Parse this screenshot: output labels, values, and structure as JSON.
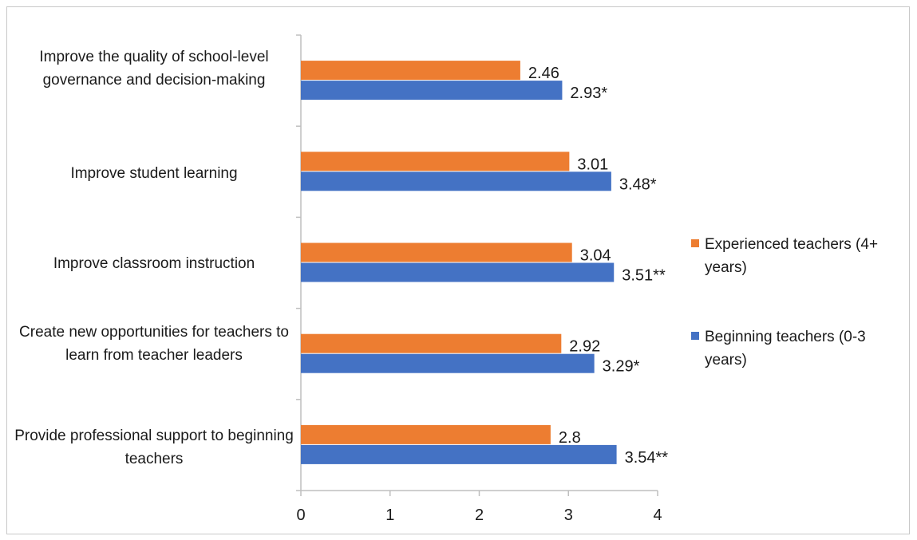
{
  "chart_data": {
    "type": "bar",
    "orientation": "horizontal",
    "categories": [
      "Improve the  quality of school-level governance and decision-making",
      "Improve student learning",
      "Improve classroom instruction",
      "Create new opportunities for teachers to learn from teacher leaders",
      "Provide professional support to beginning teachers"
    ],
    "series": [
      {
        "name": "Experienced teachers (4+ years)",
        "color": "#ed7d31",
        "values": [
          2.46,
          3.01,
          3.04,
          2.92,
          2.8
        ],
        "labels": [
          "2.46",
          "3.01",
          "3.04",
          "2.92",
          "2.8"
        ]
      },
      {
        "name": "Beginning teachers (0-3 years)",
        "color": "#4472c4",
        "values": [
          2.93,
          3.48,
          3.51,
          3.29,
          3.54
        ],
        "labels": [
          "2.93*",
          "3.48*",
          "3.51**",
          "3.29*",
          "3.54**"
        ]
      }
    ],
    "xlim": [
      0,
      4
    ],
    "xticks": [
      "0",
      "1",
      "2",
      "3",
      "4"
    ],
    "legend_position": "right",
    "grid": false
  }
}
